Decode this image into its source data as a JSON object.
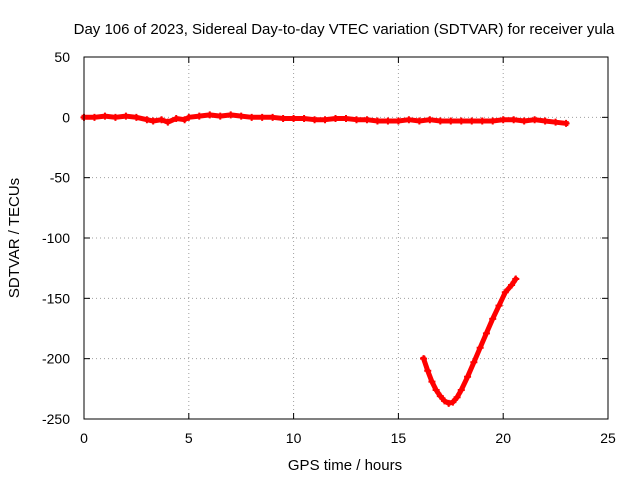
{
  "chart_data": {
    "type": "line",
    "title": "Day 106 of 2023, Sidereal Day-to-day VTEC variation (SDTVAR) for receiver yula",
    "xlabel": "GPS time / hours",
    "ylabel": "SDTVAR / TECUs",
    "xlim": [
      0,
      25
    ],
    "ylim": [
      -250,
      50
    ],
    "xticks": [
      0,
      5,
      10,
      15,
      20,
      25
    ],
    "xtick_labels": [
      "0",
      "5",
      "10",
      "15",
      "20",
      "25"
    ],
    "yticks": [
      -250,
      -200,
      -150,
      -100,
      -50,
      0,
      50
    ],
    "ytick_labels": [
      "-250",
      "-200",
      "-150",
      "-100",
      "-50",
      "0",
      "50"
    ],
    "grid": true,
    "legend": "none",
    "color": "#ff0000",
    "series": [
      {
        "name": "SDTVAR",
        "x": [
          0,
          0.5,
          1,
          1.5,
          2,
          2.5,
          3,
          3.3,
          3.7,
          4,
          4.4,
          4.8,
          5,
          5.5,
          6,
          6.5,
          7,
          7.5,
          8,
          8.5,
          9,
          9.5,
          10,
          10.5,
          11,
          11.5,
          12,
          12.5,
          13,
          13.5,
          14,
          14.5,
          15,
          15.5,
          16,
          16.5,
          17,
          17.5,
          18,
          18.5,
          19,
          19.5,
          20,
          20.5,
          21,
          21.5,
          22,
          22.5,
          23
        ],
        "values": [
          0,
          0,
          1,
          0,
          1,
          0,
          -2,
          -3,
          -2,
          -4,
          -1,
          -2,
          0,
          1,
          2,
          1,
          2,
          1,
          0,
          0,
          0,
          -1,
          -1,
          -1,
          -2,
          -2,
          -1,
          -1,
          -2,
          -2,
          -3,
          -3,
          -3,
          -2,
          -3,
          -2,
          -3,
          -3,
          -3,
          -3,
          -3,
          -3,
          -2,
          -2,
          -3,
          -2,
          -3,
          -4,
          -5
        ]
      },
      {
        "name": "SDTVAR-arc",
        "x": [
          16.2,
          16.4,
          16.6,
          16.8,
          17.0,
          17.2,
          17.4,
          17.6,
          17.8,
          18.0,
          18.3,
          18.6,
          18.9,
          19.2,
          19.5,
          19.8,
          20.1,
          20.4,
          20.6
        ],
        "values": [
          -200,
          -210,
          -219,
          -226,
          -231,
          -235,
          -237,
          -236,
          -232,
          -226,
          -215,
          -203,
          -191,
          -179,
          -167,
          -156,
          -145,
          -139,
          -134
        ]
      }
    ]
  }
}
